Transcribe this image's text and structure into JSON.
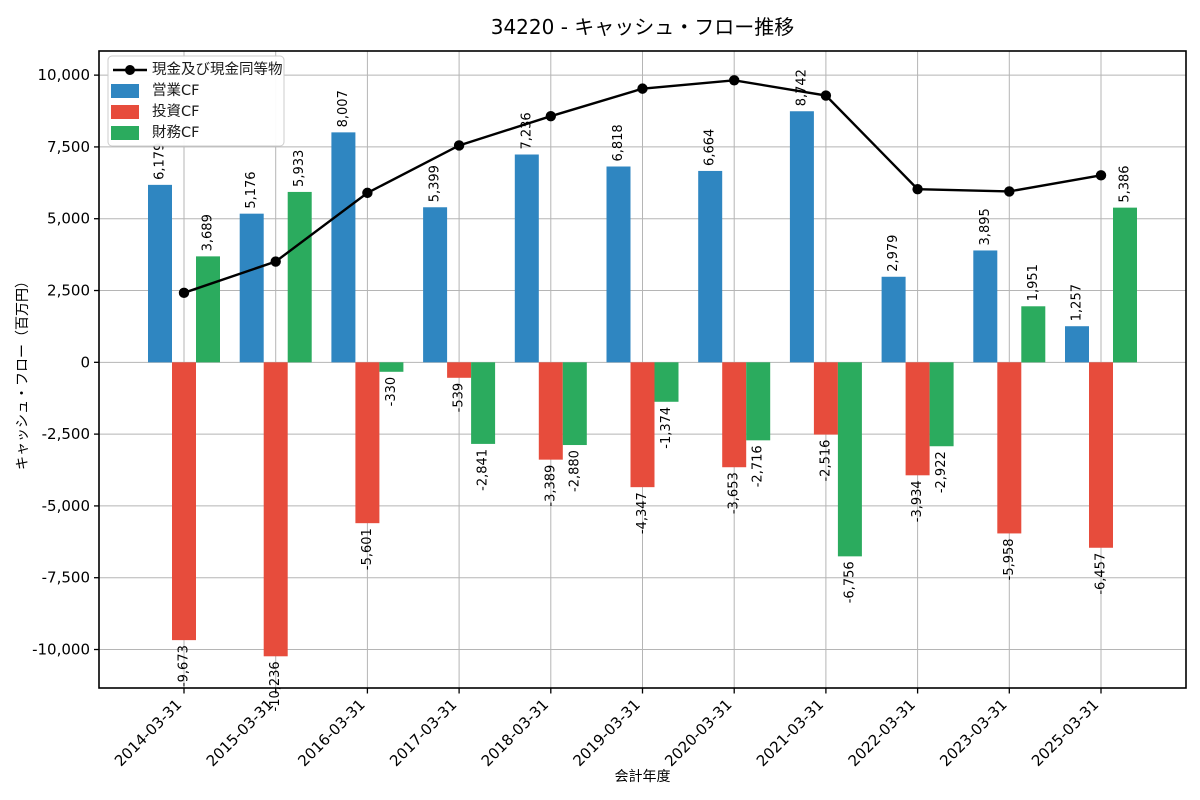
{
  "chart_data": {
    "type": "combo_bar_line",
    "title": "34220 - キャッシュ・フロー推移",
    "xlabel": "会計年度",
    "ylabel": "キャッシュ・フロー（百万円）",
    "categories": [
      "2014-03-31",
      "2015-03-31",
      "2016-03-31",
      "2017-03-31",
      "2018-03-31",
      "2019-03-31",
      "2020-03-31",
      "2021-03-31",
      "2022-03-31",
      "2023-03-31",
      "2025-03-31"
    ],
    "series": [
      {
        "key": "cash-and-equivalents",
        "name": "現金及び現金同等物",
        "type": "line",
        "color": "#000000",
        "estimated": true,
        "values": [
          2420,
          3510,
          5900,
          7550,
          8570,
          9530,
          9820,
          9290,
          6030,
          5950,
          6510
        ]
      },
      {
        "key": "operating-cf",
        "name": "営業CF",
        "type": "bar",
        "color": "#2f86c1",
        "values": [
          6179,
          5176,
          8007,
          5399,
          7236,
          6818,
          6664,
          8742,
          2979,
          3895,
          1257
        ]
      },
      {
        "key": "investing-cf",
        "name": "投資CF",
        "type": "bar",
        "color": "#e74c3c",
        "values": [
          -9673,
          -10236,
          -5601,
          -539,
          -3389,
          -4347,
          -3653,
          -2516,
          -3934,
          -5958,
          -6457
        ]
      },
      {
        "key": "financing-cf",
        "name": "財務CF",
        "type": "bar",
        "color": "#2bab5e",
        "values": [
          3689,
          5933,
          -330,
          -2841,
          -2880,
          -1374,
          -2716,
          -6756,
          -2922,
          1951,
          5386
        ]
      }
    ],
    "yticks": [
      10000,
      7500,
      5000,
      2500,
      0,
      -2500,
      -5000,
      -7500,
      -10000
    ],
    "ytick_labels": [
      "10,000",
      "7,500",
      "5,000",
      "2,500",
      "0",
      "-2,500",
      "-5,000",
      "-7,500",
      "-10,000"
    ],
    "ylim": [
      -11340,
      10840
    ],
    "grid": true,
    "grid_color": "#b5b5b5",
    "legend_position": "upper-left"
  }
}
